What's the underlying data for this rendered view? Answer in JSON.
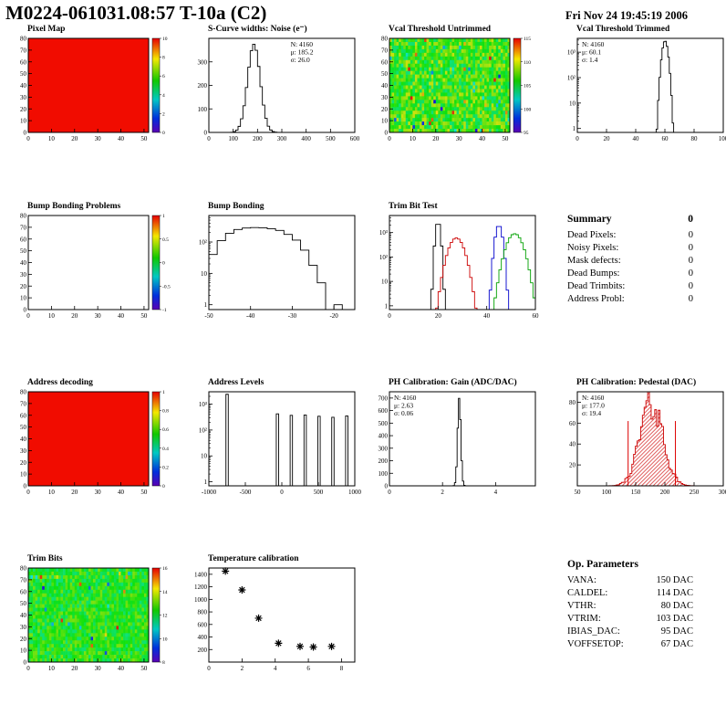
{
  "page": {
    "title": "M0224-061031.08:57 T-10a (C2)",
    "date": "Fri Nov 24 19:45:19 2006"
  },
  "summary": {
    "title": "Summary",
    "total": "0",
    "rows": [
      {
        "label": "Dead Pixels:",
        "value": "0"
      },
      {
        "label": "Noisy Pixels:",
        "value": "0"
      },
      {
        "label": "Mask defects:",
        "value": "0"
      },
      {
        "label": "Dead Bumps:",
        "value": "0"
      },
      {
        "label": "Dead Trimbits:",
        "value": "0"
      },
      {
        "label": "Address Probl:",
        "value": "0"
      }
    ]
  },
  "op_parameters": {
    "title": "Op. Parameters",
    "rows": [
      {
        "label": "VANA:",
        "value": "150 DAC"
      },
      {
        "label": "CALDEL:",
        "value": "114 DAC"
      },
      {
        "label": "VTHR:",
        "value": "80 DAC"
      },
      {
        "label": "VTRIM:",
        "value": "103 DAC"
      },
      {
        "label": "IBIAS_DAC:",
        "value": "95 DAC"
      },
      {
        "label": "VOFFSETOP:",
        "value": "67 DAC"
      }
    ]
  },
  "chart_data": [
    {
      "id": "pixel-map",
      "title": "Pixel Map",
      "type": "heatmap",
      "xlim": [
        0,
        52
      ],
      "xticks": [
        0,
        10,
        20,
        30,
        40,
        50
      ],
      "ylim": [
        0,
        80
      ],
      "yticks": [
        0,
        10,
        20,
        30,
        40,
        50,
        60,
        70,
        80
      ],
      "map": {
        "kind": "uniform",
        "color": "#f10c00"
      },
      "colorbar": {
        "labels": [
          "10",
          "8",
          "6",
          "4",
          "2",
          "0"
        ]
      }
    },
    {
      "id": "scurve-noise",
      "title": "S-Curve widths: Noise (e⁻)",
      "type": "histogram",
      "xlim": [
        0,
        600
      ],
      "xticks": [
        0,
        100,
        200,
        300,
        400,
        500,
        600
      ],
      "ylim": [
        0,
        400
      ],
      "yticks": [
        0,
        100,
        200,
        300
      ],
      "series": [
        {
          "kind": "gauss",
          "name": "noise",
          "mean": 185.2,
          "sigma": 26.0,
          "peak": 375,
          "nbins": 60,
          "color": "#000000"
        }
      ],
      "stats": {
        "pos": "right",
        "lines": [
          {
            "text": "N: 4160",
            "color": "#000000"
          },
          {
            "text": "μ: 185.2",
            "color": "#000000"
          },
          {
            "text": "σ: 26.0",
            "color": "#000000"
          }
        ]
      }
    },
    {
      "id": "vcal-untrimmed",
      "title": "Vcal Threshold Untrimmed",
      "type": "heatmap",
      "xlim": [
        0,
        52
      ],
      "xticks": [
        0,
        10,
        20,
        30,
        40,
        50
      ],
      "ylim": [
        0,
        80
      ],
      "yticks": [
        0,
        10,
        20,
        30,
        40,
        50,
        60,
        70,
        80
      ],
      "map": {
        "kind": "noise",
        "seed": 20061124,
        "base": 0.56,
        "spread": 0.34,
        "outlier": 0.05
      },
      "colorbar": {
        "labels": [
          "115",
          "110",
          "105",
          "100",
          "95"
        ]
      }
    },
    {
      "id": "vcal-trimmed",
      "title": "Vcal Threshold Trimmed",
      "type": "histogram",
      "xlim": [
        0,
        100
      ],
      "xticks": [
        0,
        20,
        40,
        60,
        80,
        100
      ],
      "ydecades": [
        1,
        10,
        100,
        1000
      ],
      "ymax": 3500,
      "series": [
        {
          "kind": "gauss",
          "name": "threshold",
          "mean": 60.1,
          "sigma": 1.4,
          "peak": 2800,
          "nbins": 100,
          "color": "#000000"
        }
      ],
      "stats": {
        "pos": "left",
        "lines": [
          {
            "text": "N: 4160",
            "color": "#000000"
          },
          {
            "text": "μ: 60.1",
            "color": "#000000"
          },
          {
            "text": "σ: 1.4",
            "color": "#000000"
          }
        ]
      }
    },
    {
      "id": "bump-problems",
      "title": "Bump Bonding Problems",
      "type": "heatmap",
      "xlim": [
        0,
        52
      ],
      "xticks": [
        0,
        10,
        20,
        30,
        40,
        50
      ],
      "ylim": [
        0,
        80
      ],
      "yticks": [
        0,
        10,
        20,
        30,
        40,
        50,
        60,
        70,
        80
      ],
      "map": {
        "kind": "empty"
      },
      "colorbar": {
        "labels": [
          "1",
          "0.5",
          "0",
          "-0.5",
          "-1"
        ]
      }
    },
    {
      "id": "bump-bonding",
      "title": "Bump Bonding",
      "type": "histogram",
      "xlim": [
        -50,
        -15
      ],
      "xticks": [
        -50,
        -40,
        -30,
        -20
      ],
      "ydecades": [
        1,
        10,
        100
      ],
      "ymax": 700,
      "series": [
        {
          "kind": "steps",
          "x0": -50,
          "binw": 2,
          "values": [
            40,
            110,
            190,
            250,
            280,
            290,
            285,
            265,
            235,
            175,
            115,
            55,
            18,
            5,
            0,
            1
          ],
          "color": "#000000"
        }
      ]
    },
    {
      "id": "trimbit-test",
      "title": "Trim Bit Test",
      "type": "histogram",
      "xlim": [
        0,
        60
      ],
      "xticks": [
        0,
        20,
        40,
        60
      ],
      "ydecades": [
        1,
        10,
        100,
        1000
      ],
      "ymax": 5000,
      "series": [
        {
          "kind": "gauss",
          "name": "trim-bits-black",
          "mean": 20,
          "sigma": 0.7,
          "peak": 2800,
          "nbins": 60,
          "color": "#000000"
        },
        {
          "kind": "gauss",
          "name": "trim-bits-red",
          "mean": 27.5,
          "sigma": 2.2,
          "peak": 600,
          "nbins": 60,
          "color": "#cc0000"
        },
        {
          "kind": "gauss",
          "name": "trim-bits-blue",
          "mean": 45,
          "sigma": 1.0,
          "peak": 2000,
          "nbins": 60,
          "color": "#0000cc"
        },
        {
          "kind": "gauss",
          "name": "trim-bits-green",
          "mean": 51.5,
          "sigma": 2.3,
          "peak": 900,
          "nbins": 60,
          "color": "#00a000"
        }
      ]
    },
    {
      "id": "address-decoding",
      "title": "Address decoding",
      "type": "heatmap",
      "xlim": [
        0,
        52
      ],
      "xticks": [
        0,
        10,
        20,
        30,
        40,
        50
      ],
      "ylim": [
        0,
        80
      ],
      "yticks": [
        0,
        10,
        20,
        30,
        40,
        50,
        60,
        70,
        80
      ],
      "map": {
        "kind": "uniform",
        "color": "#f10c00"
      },
      "colorbar": {
        "labels": [
          "1",
          "0.8",
          "0.6",
          "0.4",
          "0.2",
          "0"
        ]
      }
    },
    {
      "id": "address-levels",
      "title": "Address Levels",
      "type": "histogram",
      "xlim": [
        -1000,
        1000
      ],
      "xticks": [
        -1000,
        -500,
        0,
        500,
        1000
      ],
      "ydecades": [
        1,
        10,
        100,
        1000
      ],
      "ymax": 3000,
      "series": [
        {
          "kind": "spikes",
          "points": [
            [
              -750,
              2400
            ],
            [
              -60,
              420
            ],
            [
              130,
              370
            ],
            [
              320,
              380
            ],
            [
              510,
              340
            ],
            [
              700,
              310
            ],
            [
              890,
              350
            ]
          ],
          "color": "#000000"
        }
      ]
    },
    {
      "id": "ph-gain",
      "title": "PH Calibration: Gain (ADC/DAC)",
      "type": "histogram",
      "xlim": [
        0,
        5.5
      ],
      "xticks": [
        0,
        2,
        4
      ],
      "ylim": [
        0,
        750
      ],
      "yticks": [
        0,
        100,
        200,
        300,
        400,
        500,
        600,
        700
      ],
      "series": [
        {
          "kind": "gauss",
          "name": "gain",
          "mean": 2.63,
          "sigma": 0.06,
          "peak": 700,
          "nbins": 110,
          "color": "#000000"
        }
      ],
      "stats": {
        "pos": "left",
        "lines": [
          {
            "text": "N: 4160",
            "color": "#000000"
          },
          {
            "text": "μ: 2.63",
            "color": "#000000"
          },
          {
            "text": "σ: 0.06",
            "color": "#000000"
          }
        ]
      }
    },
    {
      "id": "ph-pedestal",
      "title": "PH Calibration: Pedestal (DAC)",
      "type": "histogram",
      "xlim": [
        50,
        300
      ],
      "xticks": [
        50,
        100,
        150,
        200,
        250,
        300
      ],
      "ylim": [
        0,
        90
      ],
      "yticks": [
        20,
        40,
        60,
        80
      ],
      "series": [
        {
          "kind": "gauss",
          "name": "pedestal",
          "mean": 177.0,
          "sigma": 19.4,
          "peak": 80,
          "nbins": 83,
          "jitter": 0.5,
          "seed": 42,
          "color": "#cc0000",
          "fill": "hatch"
        },
        {
          "kind": "vlines",
          "points": [
            [
              137,
              62
            ],
            [
              218,
              62
            ]
          ],
          "color": "#dd0000"
        }
      ],
      "stats": {
        "pos": "left",
        "lines": [
          {
            "text": "N: 4160",
            "color": "#000000"
          },
          {
            "text": "μ: 177.0",
            "color": "#cc0000"
          },
          {
            "text": "σ: 19.4",
            "color": "#cc0000"
          }
        ]
      }
    },
    {
      "id": "trim-bits",
      "title": "Trim Bits",
      "type": "heatmap",
      "xlim": [
        0,
        52
      ],
      "xticks": [
        0,
        10,
        20,
        30,
        40,
        50
      ],
      "ylim": [
        0,
        80
      ],
      "yticks": [
        0,
        10,
        20,
        30,
        40,
        50,
        60,
        70,
        80
      ],
      "map": {
        "kind": "noise",
        "seed": 4711,
        "base": 0.52,
        "spread": 0.26,
        "outlier": 0.02
      },
      "colorbar": {
        "labels": [
          "16",
          "14",
          "12",
          "10",
          "8"
        ]
      }
    },
    {
      "id": "temperature-calibration",
      "title": "Temperature calibration",
      "type": "scatter",
      "xlim": [
        0,
        8.8
      ],
      "xticks": [
        0,
        2,
        4,
        6,
        8
      ],
      "ylim": [
        0,
        1500
      ],
      "yticks": [
        200,
        400,
        600,
        800,
        1000,
        1200,
        1400
      ],
      "series": [
        {
          "kind": "points",
          "points": [
            [
              1,
              1450
            ],
            [
              2,
              1150
            ],
            [
              3,
              700
            ],
            [
              4.2,
              300
            ],
            [
              5.5,
              250
            ],
            [
              6.3,
              240
            ],
            [
              7.4,
              250
            ]
          ],
          "color": "#000000"
        }
      ]
    }
  ]
}
